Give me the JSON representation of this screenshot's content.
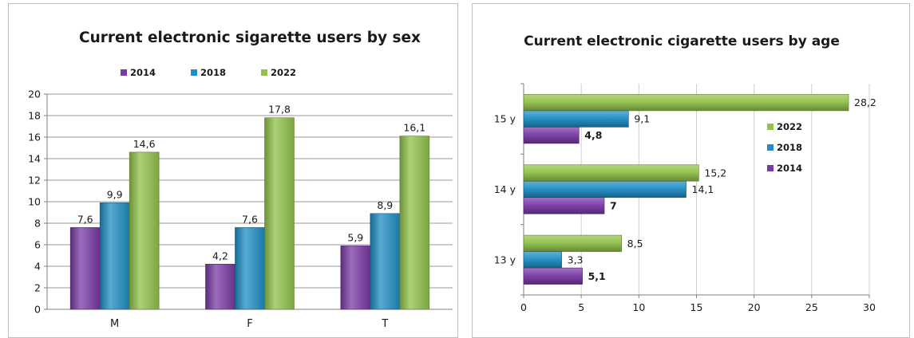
{
  "colors": {
    "purple": "#7a3aa6",
    "blue": "#1f8ec4",
    "green": "#92c24a"
  },
  "chart_data": [
    {
      "type": "bar",
      "orientation": "vertical",
      "title": "Current electronic sigarette users by sex",
      "categories": [
        "M",
        "F",
        "T"
      ],
      "series": [
        {
          "name": "2014",
          "values": [
            7.6,
            4.2,
            5.9
          ],
          "labels": [
            "7,6",
            "4,2",
            "5,9"
          ],
          "color": "#7a3aa6"
        },
        {
          "name": "2018",
          "values": [
            9.9,
            7.6,
            8.9
          ],
          "labels": [
            "9,9",
            "7,6",
            "8,9"
          ],
          "color": "#1f8ec4"
        },
        {
          "name": "2022",
          "values": [
            14.6,
            17.8,
            16.1
          ],
          "labels": [
            "14,6",
            "17,8",
            "16,1"
          ],
          "color": "#92c24a"
        }
      ],
      "ylim": [
        0,
        20
      ],
      "yticks": [
        "0",
        "2",
        "4",
        "6",
        "8",
        "10",
        "12",
        "14",
        "16",
        "18",
        "20"
      ],
      "grid": true,
      "legend_position": "top"
    },
    {
      "type": "bar",
      "orientation": "horizontal",
      "title": "Current electronic cigarette users by age",
      "categories": [
        "13 y",
        "14 y",
        "15 y"
      ],
      "series": [
        {
          "name": "2014",
          "values": [
            5.1,
            7,
            4.8
          ],
          "labels": [
            "5,1",
            "7",
            "4,8"
          ],
          "color": "#7a3aa6",
          "bold_labels": true
        },
        {
          "name": "2018",
          "values": [
            3.3,
            14.1,
            9.1
          ],
          "labels": [
            "3,3",
            "14,1",
            "9,1"
          ],
          "color": "#1f8ec4"
        },
        {
          "name": "2022",
          "values": [
            8.5,
            15.2,
            28.2
          ],
          "labels": [
            "8,5",
            "15,2",
            "28,2"
          ],
          "color": "#92c24a"
        }
      ],
      "xlim": [
        0,
        30
      ],
      "xticks": [
        "0",
        "5",
        "10",
        "15",
        "20",
        "25",
        "30"
      ],
      "grid": true,
      "legend_position": "right",
      "legend_order": [
        "2022",
        "2018",
        "2014"
      ]
    }
  ]
}
